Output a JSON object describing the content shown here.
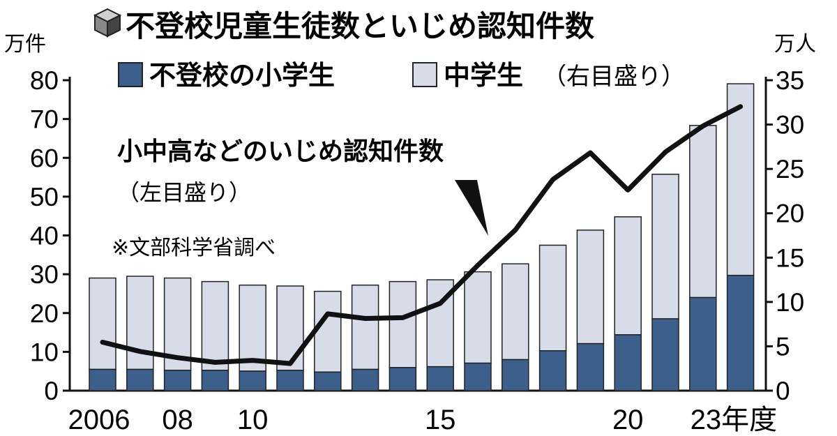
{
  "colors": {
    "elementary": "#3c5f8c",
    "middle": "#d8dbe8",
    "line": "#111111",
    "outline": "#222222"
  },
  "header": {
    "icon": "cube-icon",
    "title": "不登校児童生徒数といじめ認知件数"
  },
  "units": {
    "left": "万件",
    "right": "万人"
  },
  "legend": {
    "elementary_label": "不登校の小学生",
    "middle_label": "中学生",
    "middle_note": "（右目盛り）"
  },
  "annotation": {
    "line_label": "小中高などのいじめ認知件数",
    "line_note": "（左目盛り）"
  },
  "source_note": "※文部科学省調べ",
  "x_tick_labels": [
    "2006",
    "08",
    "10",
    "15",
    "20",
    "23年度"
  ],
  "chart_data": {
    "type": "bar",
    "stacked": true,
    "categories": [
      "2006",
      "2007",
      "2008",
      "2009",
      "2010",
      "2011",
      "2012",
      "2013",
      "2014",
      "2015",
      "2016",
      "2017",
      "2018",
      "2019",
      "2020",
      "2021",
      "2022",
      "2023"
    ],
    "series": [
      {
        "name": "不登校の小学生",
        "axis": "right",
        "values": [
          2.4,
          2.4,
          2.3,
          2.3,
          2.2,
          2.3,
          2.1,
          2.4,
          2.6,
          2.7,
          3.1,
          3.5,
          4.5,
          5.3,
          6.3,
          8.1,
          10.5,
          13.0
        ]
      },
      {
        "name": "中学生",
        "axis": "right",
        "values": [
          10.3,
          10.5,
          10.4,
          10.0,
          9.7,
          9.5,
          9.1,
          9.5,
          9.7,
          9.8,
          10.3,
          10.8,
          11.9,
          12.8,
          13.3,
          16.3,
          19.4,
          21.6
        ]
      },
      {
        "name": "小中高などのいじめ認知件数",
        "axis": "left",
        "type": "line",
        "values": [
          12.5,
          10.1,
          8.5,
          7.3,
          7.8,
          7.0,
          19.8,
          18.6,
          18.8,
          22.5,
          32.3,
          41.4,
          54.4,
          61.3,
          51.7,
          61.5,
          68.2,
          73.2
        ]
      }
    ],
    "left_axis": {
      "unit": "万件",
      "ylim": [
        0,
        80
      ],
      "ticks": [
        0,
        10,
        20,
        30,
        40,
        50,
        60,
        70,
        80
      ]
    },
    "right_axis": {
      "unit": "万人",
      "ylim": [
        0,
        35
      ],
      "ticks": [
        0,
        5,
        10,
        15,
        20,
        25,
        30,
        35
      ]
    },
    "grid": false,
    "legend_position": "top"
  }
}
